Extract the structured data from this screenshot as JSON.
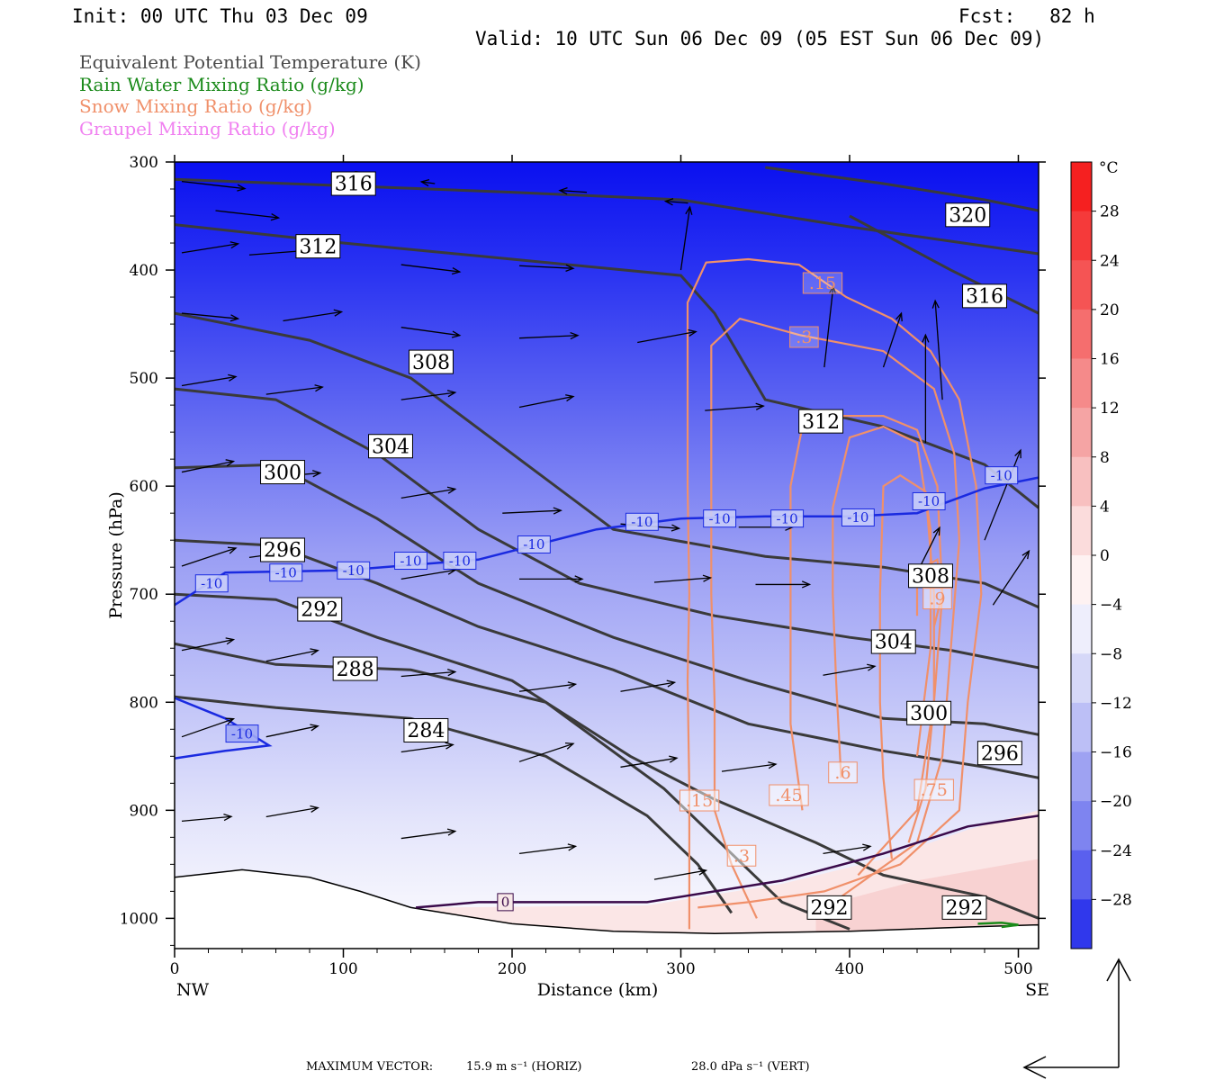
{
  "header": {
    "init": "Init: 00 UTC Thu 03 Dec 09",
    "fcst": "Fcst:   82 h",
    "valid": "Valid: 10 UTC Sun 06 Dec 09 (05 EST Sun 06 Dec 09)"
  },
  "legend": [
    {
      "label": "Equivalent Potential Temperature (K)",
      "color": "#4a4a4a"
    },
    {
      "label": "Rain Water Mixing Ratio (g/kg)",
      "color": "#1a8a1a"
    },
    {
      "label": "Snow Mixing Ratio (g/kg)",
      "color": "#f0906a"
    },
    {
      "label": "Graupel Mixing Ratio (g/kg)",
      "color": "#f080f0"
    }
  ],
  "chart_data": {
    "type": "cross-section",
    "xlabel": "Distance (km)",
    "ylabel": "Pressure (hPa)",
    "xlim": [
      0,
      512
    ],
    "ylim": [
      1028,
      300
    ],
    "x_ticks": [
      0,
      100,
      200,
      300,
      400,
      500
    ],
    "y_ticks": [
      300,
      400,
      500,
      600,
      700,
      800,
      900,
      1000
    ],
    "x_end_labels": {
      "left": "NW",
      "right": "SE"
    },
    "colorbar": {
      "unit": "°C",
      "ticks": [
        28,
        24,
        20,
        16,
        12,
        8,
        4,
        0,
        -4,
        -8,
        -12,
        -16,
        -20,
        -24,
        -28
      ]
    },
    "theta_e_contours": [
      {
        "label": "316",
        "points": [
          [
            0,
            316
          ],
          [
            100,
            322
          ],
          [
            200,
            328
          ],
          [
            300,
            335
          ],
          [
            400,
            360
          ],
          [
            512,
            385
          ]
        ],
        "lx": 106,
        "lp": 320
      },
      {
        "label": "312",
        "points": [
          [
            0,
            358
          ],
          [
            100,
            375
          ],
          [
            200,
            390
          ],
          [
            300,
            405
          ],
          [
            320,
            440
          ],
          [
            350,
            520
          ],
          [
            420,
            545
          ],
          [
            480,
            580
          ],
          [
            512,
            620
          ]
        ],
        "lx": 85,
        "lp": 378
      },
      {
        "label": "308",
        "points": [
          [
            0,
            440
          ],
          [
            80,
            465
          ],
          [
            140,
            500
          ],
          [
            200,
            570
          ],
          [
            260,
            640
          ],
          [
            350,
            665
          ],
          [
            420,
            675
          ],
          [
            480,
            690
          ],
          [
            512,
            712
          ]
        ],
        "lx": 152,
        "lp": 485
      },
      {
        "label": "304",
        "points": [
          [
            0,
            510
          ],
          [
            60,
            520
          ],
          [
            120,
            570
          ],
          [
            180,
            640
          ],
          [
            240,
            690
          ],
          [
            320,
            720
          ],
          [
            400,
            740
          ],
          [
            460,
            752
          ],
          [
            512,
            768
          ]
        ],
        "lx": 128,
        "lp": 563
      },
      {
        "label": "300",
        "points": [
          [
            0,
            583
          ],
          [
            60,
            580
          ],
          [
            120,
            630
          ],
          [
            180,
            690
          ],
          [
            260,
            740
          ],
          [
            340,
            780
          ],
          [
            420,
            815
          ],
          [
            480,
            820
          ],
          [
            512,
            830
          ]
        ],
        "lx": 64,
        "lp": 587
      },
      {
        "label": "296",
        "points": [
          [
            0,
            650
          ],
          [
            60,
            655
          ],
          [
            120,
            690
          ],
          [
            180,
            730
          ],
          [
            260,
            770
          ],
          [
            340,
            820
          ],
          [
            420,
            845
          ],
          [
            480,
            860
          ],
          [
            512,
            870
          ]
        ],
        "lx": 64,
        "lp": 659
      },
      {
        "label": "292",
        "points": [
          [
            0,
            700
          ],
          [
            60,
            705
          ],
          [
            120,
            740
          ],
          [
            200,
            780
          ],
          [
            270,
            850
          ],
          [
            320,
            890
          ],
          [
            380,
            930
          ],
          [
            420,
            960
          ],
          [
            480,
            980
          ],
          [
            512,
            1000
          ]
        ],
        "lx": 86,
        "lp": 714
      },
      {
        "label": "288",
        "points": [
          [
            0,
            746
          ],
          [
            60,
            765
          ],
          [
            140,
            770
          ],
          [
            220,
            800
          ],
          [
            290,
            880
          ],
          [
            330,
            940
          ],
          [
            360,
            985
          ],
          [
            400,
            1010
          ]
        ],
        "lx": 107,
        "lp": 769
      },
      {
        "label": "284",
        "points": [
          [
            0,
            795
          ],
          [
            60,
            805
          ],
          [
            140,
            815
          ],
          [
            220,
            850
          ],
          [
            280,
            905
          ],
          [
            310,
            950
          ],
          [
            330,
            995
          ]
        ],
        "lx": 149,
        "lp": 826
      },
      {
        "label": "320",
        "points": [
          [
            350,
            305
          ],
          [
            420,
            320
          ],
          [
            480,
            335
          ],
          [
            512,
            345
          ]
        ],
        "lx": 470,
        "lp": 349
      },
      {
        "label": "316",
        "points": [
          [
            400,
            350
          ],
          [
            460,
            400
          ],
          [
            512,
            440
          ]
        ],
        "lx": 480,
        "lp": 424
      }
    ],
    "isotherm_minus10": {
      "label": "-10",
      "points": [
        [
          0,
          710
        ],
        [
          30,
          680
        ],
        [
          100,
          678
        ],
        [
          180,
          668
        ],
        [
          250,
          640
        ],
        [
          300,
          630
        ],
        [
          350,
          628
        ],
        [
          400,
          628
        ],
        [
          440,
          625
        ],
        [
          480,
          602
        ],
        [
          512,
          592
        ]
      ],
      "label_positions": [
        [
          22,
          690
        ],
        [
          66,
          680
        ],
        [
          106,
          678
        ],
        [
          140,
          669
        ],
        [
          169,
          669
        ],
        [
          213,
          654
        ],
        [
          277,
          633
        ],
        [
          323,
          630
        ],
        [
          363,
          630
        ],
        [
          405,
          629
        ],
        [
          447,
          614
        ],
        [
          490,
          590
        ]
      ]
    },
    "isotherm_minus10_low": {
      "points": [
        [
          0,
          796
        ],
        [
          30,
          815
        ],
        [
          56,
          840
        ],
        [
          30,
          845
        ],
        [
          0,
          852
        ]
      ],
      "label_positions": [
        [
          40,
          829
        ]
      ]
    },
    "isotherm_zero": {
      "label": "0",
      "points": [
        [
          143,
          990
        ],
        [
          180,
          985
        ],
        [
          280,
          985
        ],
        [
          360,
          965
        ],
        [
          420,
          940
        ],
        [
          470,
          915
        ],
        [
          512,
          905
        ]
      ],
      "label_positions": [
        [
          196,
          985
        ]
      ]
    },
    "snow_contours": [
      {
        "label": ".15",
        "points": [
          [
            305,
            1010
          ],
          [
            305,
            880
          ],
          [
            304,
            780
          ],
          [
            305,
            700
          ],
          [
            304,
            600
          ],
          [
            304,
            450
          ],
          [
            304,
            430
          ],
          [
            315,
            393
          ],
          [
            340,
            390
          ],
          [
            370,
            395
          ],
          [
            398,
            425
          ],
          [
            425,
            445
          ],
          [
            448,
            475
          ],
          [
            465,
            520
          ],
          [
            475,
            600
          ],
          [
            478,
            700
          ],
          [
            470,
            800
          ],
          [
            465,
            900
          ],
          [
            430,
            950
          ],
          [
            385,
            975
          ],
          [
            340,
            985
          ],
          [
            310,
            990
          ]
        ],
        "lx": 311,
        "lp": 891
      },
      {
        "label": ".3",
        "points": [
          [
            345,
            1000
          ],
          [
            330,
            950
          ],
          [
            320,
            900
          ],
          [
            320,
            800
          ],
          [
            318,
            700
          ],
          [
            318,
            600
          ],
          [
            318,
            470
          ],
          [
            335,
            445
          ],
          [
            370,
            460
          ],
          [
            420,
            475
          ],
          [
            450,
            510
          ],
          [
            462,
            570
          ],
          [
            465,
            650
          ],
          [
            460,
            750
          ],
          [
            455,
            850
          ],
          [
            440,
            930
          ],
          [
            395,
            980
          ]
        ],
        "lx": 336,
        "lp": 942
      },
      {
        "label": ".45",
        "points": [
          [
            372,
            900
          ],
          [
            365,
            820
          ],
          [
            365,
            720
          ],
          [
            365,
            600
          ],
          [
            372,
            545
          ],
          [
            395,
            535
          ],
          [
            420,
            535
          ],
          [
            440,
            548
          ],
          [
            452,
            600
          ],
          [
            455,
            700
          ],
          [
            450,
            800
          ],
          [
            440,
            900
          ],
          [
            405,
            960
          ]
        ],
        "lx": 364,
        "lp": 886
      },
      {
        "label": ".6",
        "points": [
          [
            395,
            870
          ],
          [
            392,
            780
          ],
          [
            390,
            700
          ],
          [
            390,
            620
          ],
          [
            400,
            555
          ],
          [
            420,
            545
          ],
          [
            440,
            560
          ],
          [
            448,
            640
          ],
          [
            448,
            750
          ],
          [
            440,
            850
          ]
        ],
        "lx": 396,
        "lp": 865
      },
      {
        "label": ".75",
        "points": [
          [
            425,
            945
          ],
          [
            420,
            870
          ],
          [
            418,
            800
          ],
          [
            418,
            700
          ],
          [
            420,
            600
          ],
          [
            430,
            590
          ],
          [
            445,
            605
          ],
          [
            450,
            700
          ],
          [
            450,
            800
          ],
          [
            445,
            880
          ],
          [
            435,
            930
          ]
        ],
        "lx": 450,
        "lp": 881
      },
      {
        "label": ".9",
        "points": [
          [
            440,
            720
          ],
          [
            440,
            690
          ],
          [
            443,
            676
          ],
          [
            452,
            668
          ],
          [
            455,
            700
          ],
          [
            450,
            730
          ]
        ],
        "lx": 452,
        "lp": 704
      }
    ],
    "snow_inline_labels": [
      {
        "label": ".15",
        "lx": 384,
        "lp": 412
      },
      {
        "label": ".3",
        "lx": 373,
        "lp": 462
      }
    ],
    "inline_theta_labels": [
      {
        "label": "312",
        "lx": 383,
        "lp": 540
      },
      {
        "label": "308",
        "lx": 448,
        "lp": 683
      },
      {
        "label": "304",
        "lx": 426,
        "lp": 744
      },
      {
        "label": "300",
        "lx": 447,
        "lp": 810
      },
      {
        "label": "296",
        "lx": 489,
        "lp": 847
      },
      {
        "label": "292",
        "lx": 468,
        "lp": 990
      },
      {
        "label": "292",
        "lx": 388,
        "lp": 990
      }
    ]
  },
  "footer": {
    "max_label": "MAXIMUM VECTOR:",
    "horiz": "15.9 m s⁻¹ (HORIZ)",
    "vert": "28.0 dPa s⁻¹ (VERT)"
  }
}
